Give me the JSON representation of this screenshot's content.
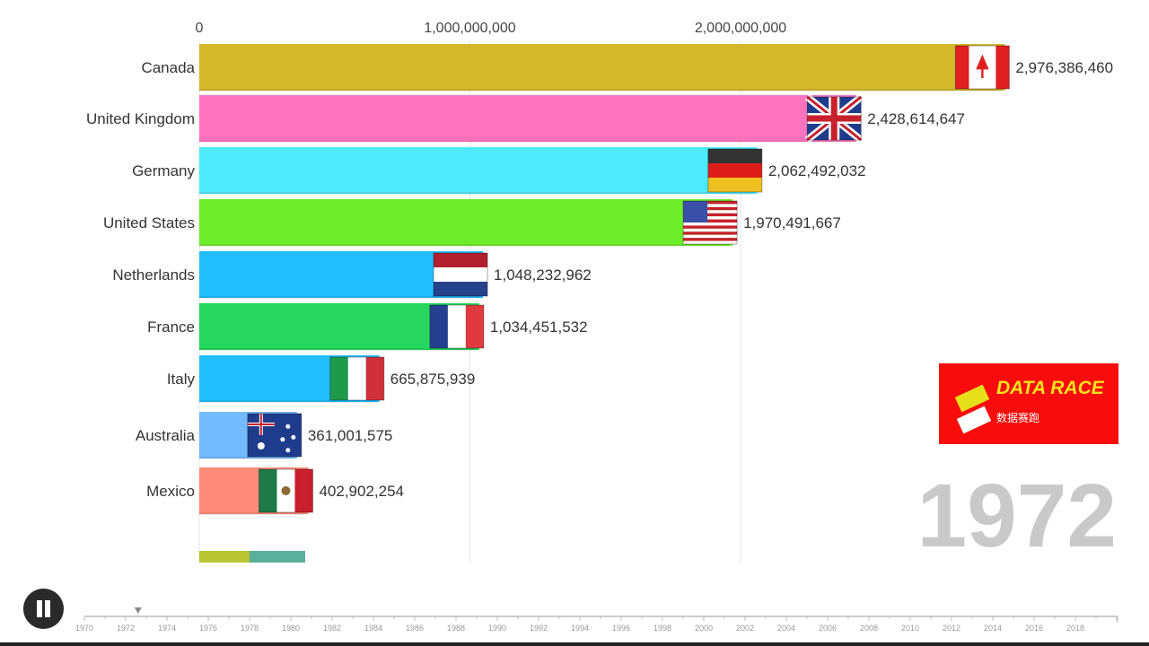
{
  "chart_data": {
    "type": "bar",
    "orientation": "horizontal",
    "title": "",
    "xlabel": "",
    "ylabel": "",
    "xlim": [
      0,
      3000000000
    ],
    "x_ticks": [
      {
        "value": 0,
        "label": "0"
      },
      {
        "value": 1000000000,
        "label": "1,000,000,000"
      },
      {
        "value": 2000000000,
        "label": "2,000,000,000"
      }
    ],
    "grid": true,
    "categories": [
      "Canada",
      "United Kingdom",
      "Germany",
      "United States",
      "Netherlands",
      "France",
      "Italy",
      "Australia",
      "Mexico"
    ],
    "values": [
      2976386460,
      2428614647,
      2062492032,
      1970491667,
      1048232962,
      1034451532,
      665875939,
      361001575,
      402902254
    ],
    "value_labels": [
      "2,976,386,460",
      "2,428,614,647",
      "2,062,492,032",
      "1,970,491,667",
      "1,048,232,962",
      "1,034,451,532",
      "665,875,939",
      "361,001,575",
      "402,902,254"
    ],
    "colors": [
      "#d4b82a",
      "#ff73bd",
      "#4deafc",
      "#6eed2a",
      "#21bdfc",
      "#26d65e",
      "#21bdfc",
      "#74baff",
      "#ff8c7a"
    ],
    "flags": [
      "canada-flag",
      "uk-flag",
      "germany-flag",
      "usa-flag",
      "netherlands-flag",
      "france-flag",
      "italy-flag",
      "australia-flag",
      "mexico-flag"
    ]
  },
  "year": "1972",
  "logo": {
    "title": "DATA RACE",
    "subtitle": "数据赛跑",
    "color": "#f80c0c"
  },
  "timeline": {
    "labels": [
      "1970",
      "1972",
      "1974",
      "1976",
      "1978",
      "1980",
      "1982",
      "1984",
      "1986",
      "1988",
      "1990",
      "1992",
      "1994",
      "1996",
      "1998",
      "2000",
      "2002",
      "2004",
      "2006",
      "2008",
      "2010",
      "2012",
      "2014",
      "2016",
      "2018"
    ],
    "current": 1972.6
  },
  "controls": {
    "pause_icon": "pause-icon"
  }
}
